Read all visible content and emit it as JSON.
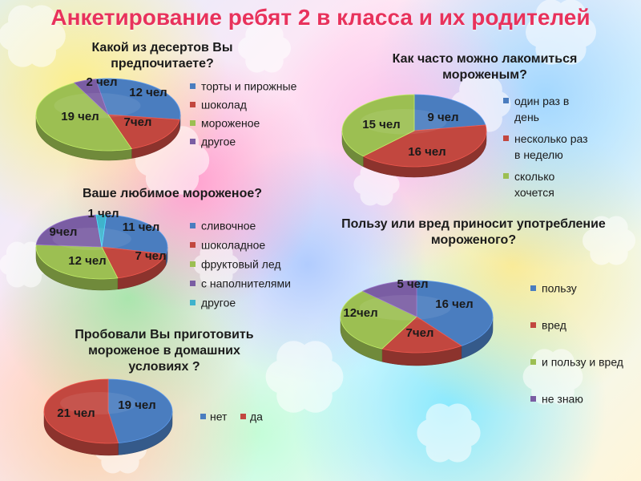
{
  "page": {
    "title": "Анкетирование ребят 2 в класса и их родителей"
  },
  "colors": {
    "blue": "#4a7dbf",
    "red": "#c2473f",
    "green": "#9cbf52",
    "purple": "#7a5da3",
    "cyan": "#3fb3cc",
    "title": "#e8325c"
  },
  "chart_data": [
    {
      "type": "pie",
      "title": "Какой из десертов Вы предпочитаете?",
      "categories": [
        "торты и пирожные",
        "шоколад",
        "мороженое",
        "другое"
      ],
      "values": [
        12,
        7,
        19,
        2
      ],
      "data_labels": [
        "12 чел",
        "7чел",
        "19 чел",
        "2 чел"
      ],
      "legend": "right"
    },
    {
      "type": "pie",
      "title": "Как часто можно лакомиться мороженым?",
      "categories": [
        "один раз в день",
        "несколько раз в неделю",
        "сколько хочется"
      ],
      "values": [
        9,
        16,
        15
      ],
      "data_labels": [
        "9 чел",
        "16 чел",
        "15 чел"
      ],
      "legend": "right"
    },
    {
      "type": "pie",
      "title": "Ваше любимое мороженое?",
      "categories": [
        "сливочное",
        "шоколадное",
        "фруктовый лед",
        "с наполнителями",
        "другое"
      ],
      "values": [
        11,
        7,
        12,
        9,
        1
      ],
      "data_labels": [
        "11 чел",
        "7 чел",
        "12 чел",
        "9чел",
        "1 чел"
      ],
      "legend": "right"
    },
    {
      "type": "pie",
      "title": "Пользу или вред приносит употребление мороженого?",
      "categories": [
        "пользу",
        "вред",
        "и пользу и вред",
        "не знаю"
      ],
      "values": [
        16,
        7,
        12,
        5
      ],
      "data_labels": [
        "16 чел",
        "7чел",
        "12чел",
        "5 чел"
      ],
      "legend": "right"
    },
    {
      "type": "pie",
      "title": "Пробовали Вы приготовить мороженое в домашних условиях ?",
      "categories": [
        "нет",
        "да"
      ],
      "values": [
        19,
        21
      ],
      "data_labels": [
        "19 чел",
        "21 чел"
      ],
      "legend": "right"
    }
  ]
}
